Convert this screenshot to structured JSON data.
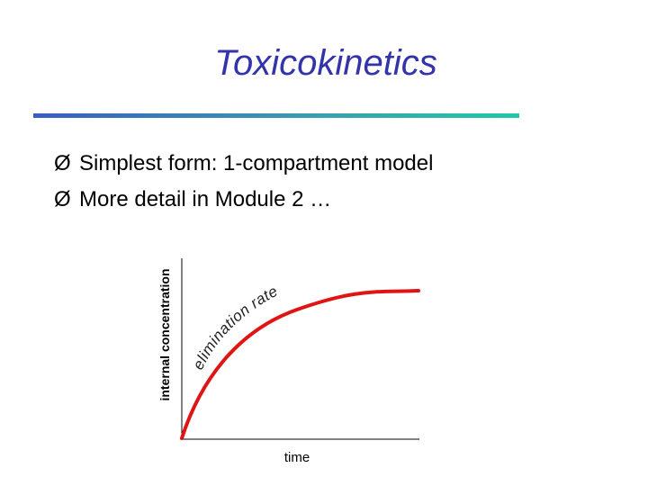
{
  "header": {
    "title": "Toxicokinetics"
  },
  "bullets": [
    {
      "marker": "Ø",
      "text": "Simplest form: 1-compartment model"
    },
    {
      "marker": "Ø",
      "text": "More detail in Module 2 …"
    }
  ],
  "figure": {
    "y_label": "internal concentration",
    "x_label": "time",
    "annotation": "elimination rate"
  }
}
